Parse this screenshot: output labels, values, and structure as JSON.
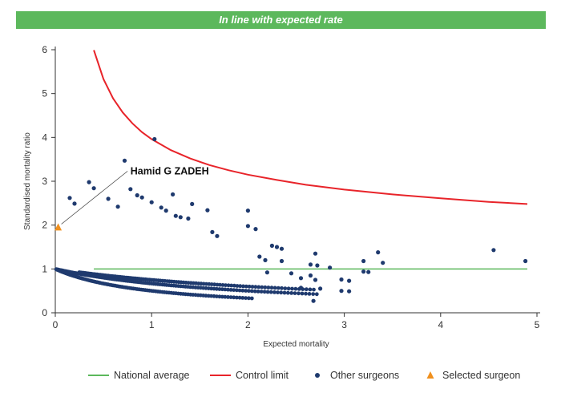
{
  "banner": {
    "text": "In line with expected rate"
  },
  "colors": {
    "banner": "#5cb85c",
    "national": "#5cb85c",
    "control": "#e8242a",
    "others": "#1f3a6e",
    "selected": "#f0901e"
  },
  "chart_data": {
    "type": "scatter",
    "xlabel": "Expected mortality",
    "ylabel": "Standardised mortality ratio",
    "xlim": [
      0,
      5
    ],
    "ylim": [
      0,
      6
    ],
    "xticks": [
      0,
      1,
      2,
      3,
      4,
      5
    ],
    "yticks": [
      0,
      1,
      2,
      3,
      4,
      5,
      6
    ],
    "legend_position": "bottom",
    "legend": [
      "National average",
      "Control limit",
      "Other surgeons",
      "Selected surgeon"
    ],
    "national_average": {
      "name": "National average",
      "y": 1,
      "x_range": [
        0.4,
        4.9
      ]
    },
    "control_limit": {
      "name": "Control limit",
      "x": [
        0.4,
        0.5,
        0.6,
        0.7,
        0.8,
        0.9,
        1.0,
        1.2,
        1.4,
        1.6,
        1.8,
        2.0,
        2.3,
        2.6,
        3.0,
        3.5,
        4.0,
        4.5,
        4.9
      ],
      "y": [
        5.99,
        5.33,
        4.89,
        4.57,
        4.32,
        4.12,
        3.96,
        3.71,
        3.52,
        3.37,
        3.25,
        3.15,
        3.03,
        2.92,
        2.81,
        2.7,
        2.61,
        2.53,
        2.48
      ]
    },
    "other_surgeons": {
      "name": "Other surgeons",
      "curves": [
        {
          "deaths": 1,
          "x_range": [
            0.01,
            2.05
          ]
        },
        {
          "deaths": 2,
          "x_range": [
            0.01,
            2.75
          ]
        },
        {
          "deaths": 3,
          "x_range": [
            0.25,
            2.7
          ]
        }
      ],
      "extra_points": [
        [
          0.15,
          2.62
        ],
        [
          0.2,
          2.49
        ],
        [
          0.35,
          2.98
        ],
        [
          0.4,
          2.84
        ],
        [
          0.55,
          2.6
        ],
        [
          0.65,
          2.42
        ],
        [
          0.72,
          3.47
        ],
        [
          0.78,
          2.82
        ],
        [
          0.85,
          2.68
        ],
        [
          0.9,
          2.63
        ],
        [
          1.0,
          2.52
        ],
        [
          1.03,
          3.96
        ],
        [
          1.1,
          2.4
        ],
        [
          1.15,
          2.33
        ],
        [
          1.22,
          2.7
        ],
        [
          1.25,
          2.21
        ],
        [
          1.3,
          2.18
        ],
        [
          1.38,
          2.15
        ],
        [
          1.42,
          2.48
        ],
        [
          1.58,
          2.34
        ],
        [
          1.63,
          1.84
        ],
        [
          1.68,
          1.75
        ],
        [
          2.0,
          2.33
        ],
        [
          2.0,
          1.98
        ],
        [
          2.08,
          1.91
        ],
        [
          2.12,
          1.28
        ],
        [
          2.18,
          1.2
        ],
        [
          2.25,
          1.53
        ],
        [
          2.3,
          1.5
        ],
        [
          2.35,
          1.46
        ],
        [
          2.35,
          1.18
        ],
        [
          2.65,
          1.1
        ],
        [
          2.7,
          1.35
        ],
        [
          2.72,
          1.08
        ],
        [
          2.85,
          1.03
        ],
        [
          2.97,
          0.76
        ],
        [
          2.97,
          0.5
        ],
        [
          3.05,
          0.73
        ],
        [
          3.05,
          0.49
        ],
        [
          3.2,
          1.18
        ],
        [
          3.2,
          0.94
        ],
        [
          3.25,
          0.93
        ],
        [
          3.35,
          1.38
        ],
        [
          3.4,
          1.14
        ],
        [
          4.55,
          1.43
        ],
        [
          4.88,
          1.18
        ],
        [
          2.55,
          0.57
        ],
        [
          2.65,
          0.85
        ],
        [
          2.7,
          0.75
        ],
        [
          2.75,
          0.55
        ],
        [
          2.68,
          0.27
        ],
        [
          2.2,
          0.92
        ],
        [
          2.45,
          0.9
        ],
        [
          2.55,
          0.79
        ]
      ]
    },
    "selected_surgeon": {
      "name": "Selected surgeon",
      "label": "Hamid G ZADEH",
      "x": 0.03,
      "y": 1.95
    }
  }
}
